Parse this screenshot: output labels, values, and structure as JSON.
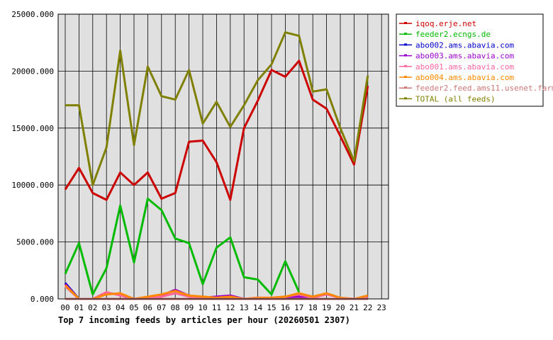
{
  "chart_data": {
    "type": "line",
    "title": "Top 7 incoming feeds by articles per hour (20260501 2307)",
    "xlabel": "",
    "ylabel": "",
    "x": [
      "00",
      "01",
      "02",
      "03",
      "04",
      "05",
      "06",
      "07",
      "08",
      "09",
      "10",
      "11",
      "12",
      "13",
      "14",
      "15",
      "16",
      "17",
      "18",
      "19",
      "20",
      "21",
      "22",
      "23"
    ],
    "ylim": [
      0,
      25000
    ],
    "yticks": [
      "0.000",
      "5000.000",
      "10000.000",
      "15000.000",
      "20000.000",
      "25000.000"
    ],
    "grid": true,
    "legend_position": "right",
    "series": [
      {
        "name": "iqoq.erje.net",
        "color": "#cc0000",
        "values": [
          9600,
          11500,
          9300,
          8700,
          11100,
          10000,
          11100,
          8800,
          9300,
          13800,
          13900,
          12000,
          8700,
          15000,
          17400,
          20100,
          19500,
          20900,
          17500,
          16700,
          14300,
          11800,
          18700,
          null
        ]
      },
      {
        "name": "feeder2.ecngs.de",
        "color": "#00bb00",
        "values": [
          2200,
          4900,
          400,
          2700,
          8200,
          3200,
          8800,
          7800,
          5300,
          4900,
          1300,
          4500,
          5400,
          1900,
          1700,
          400,
          3300,
          600,
          null,
          null,
          null,
          null,
          null,
          null
        ]
      },
      {
        "name": "abo002.ams.abavia.com",
        "color": "#0000cc",
        "values": [
          1400,
          0,
          0,
          0,
          0,
          0,
          0,
          0,
          0,
          0,
          0,
          0,
          0,
          0,
          0,
          0,
          0,
          0,
          0,
          0,
          0,
          0,
          0,
          null
        ]
      },
      {
        "name": "abo003.ams.abavia.com",
        "color": "#9900cc",
        "values": [
          1300,
          0,
          0,
          500,
          400,
          0,
          100,
          300,
          800,
          300,
          100,
          200,
          300,
          0,
          100,
          0,
          100,
          200,
          0,
          0,
          0,
          0,
          0,
          null
        ]
      },
      {
        "name": "abo001.ams.abavia.com",
        "color": "#ff6699",
        "values": [
          1100,
          0,
          0,
          600,
          300,
          0,
          100,
          200,
          500,
          200,
          100,
          100,
          200,
          0,
          100,
          100,
          200,
          400,
          100,
          400,
          100,
          0,
          100,
          null
        ]
      },
      {
        "name": "abo004.ams.abavia.com",
        "color": "#ff8800",
        "values": [
          1200,
          0,
          0,
          400,
          500,
          0,
          200,
          400,
          700,
          300,
          200,
          100,
          200,
          0,
          100,
          100,
          200,
          500,
          200,
          500,
          100,
          0,
          300,
          null
        ]
      },
      {
        "name": "feeder2.feed.ams11.usenet.farm",
        "color": "#cc7777",
        "values": [
          0,
          0,
          0,
          0,
          0,
          0,
          0,
          0,
          0,
          0,
          0,
          0,
          0,
          0,
          0,
          0,
          0,
          0,
          0,
          0,
          0,
          0,
          0,
          null
        ]
      },
      {
        "name": "TOTAL (all feeds)",
        "color": "#808000",
        "values": [
          17000,
          17000,
          10000,
          13300,
          21800,
          13500,
          20400,
          17800,
          17500,
          20100,
          15400,
          17300,
          15100,
          17000,
          19200,
          20600,
          23400,
          23100,
          18200,
          18400,
          15000,
          12100,
          19600,
          null
        ]
      }
    ]
  }
}
